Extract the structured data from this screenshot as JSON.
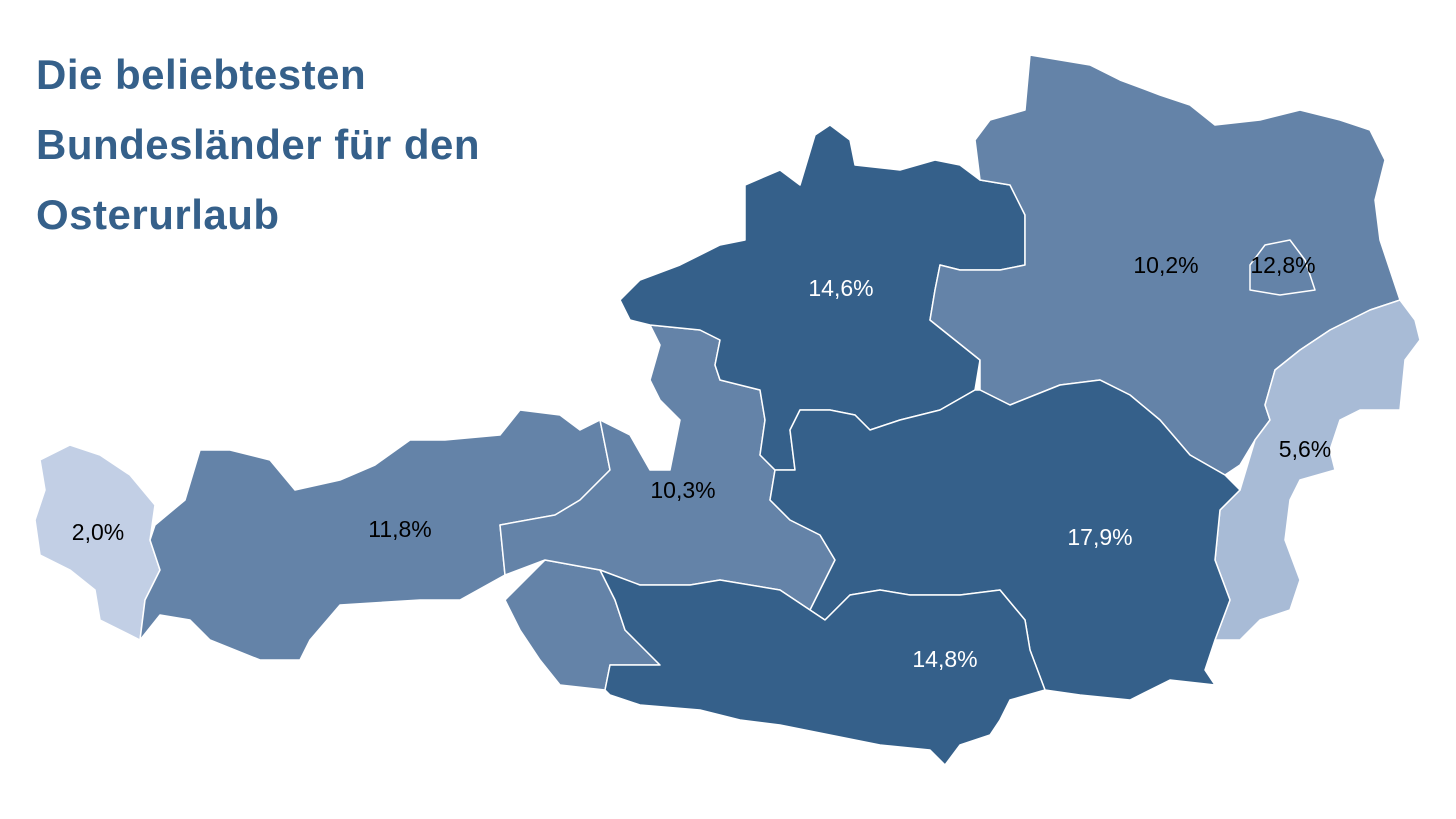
{
  "chart_data": {
    "type": "map",
    "title": "Die beliebtesten Bundesländer für den Osterurlaub",
    "values": [
      2.0,
      11.8,
      10.3,
      14.6,
      10.2,
      12.8,
      5.6,
      17.9,
      14.8
    ],
    "value_labels": [
      "2,0%",
      "11,8%",
      "10,3%",
      "14,6%",
      "10,2%",
      "12,8%",
      "5,6%",
      "17,9%",
      "14,8%"
    ],
    "colors": [
      "#c2cfe5",
      "#6483a8",
      "#6483a8",
      "#35608a",
      "#6483a8",
      "#6483a8",
      "#a8bbd6",
      "#35608a",
      "#35608a"
    ]
  }
}
